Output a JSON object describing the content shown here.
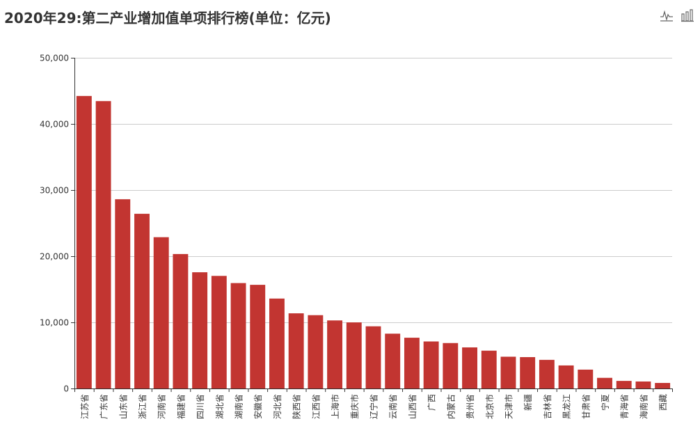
{
  "title": "2020年29:第二产业增加值单项排行榜(单位：亿元)",
  "toolbox": {
    "line_icon": "line-chart-icon",
    "bar_icon": "bar-chart-icon"
  },
  "colors": {
    "bar": "#c23531",
    "axis": "#333333",
    "grid": "#cccccc",
    "text": "#333333"
  },
  "chart_data": {
    "type": "bar",
    "title": "2020年29:第二产业增加值单项排行榜(单位：亿元)",
    "xlabel": "",
    "ylabel": "",
    "ylim": [
      0,
      50000
    ],
    "yticks": [
      "0",
      "10,000",
      "20,000",
      "30,000",
      "40,000",
      "50,000"
    ],
    "grid": true,
    "categories": [
      "江苏省",
      "广东省",
      "山东省",
      "浙江省",
      "河南省",
      "福建省",
      "四川省",
      "湖北省",
      "湖南省",
      "安徽省",
      "河北省",
      "陕西省",
      "江西省",
      "上海市",
      "重庆市",
      "辽宁省",
      "云南省",
      "山西省",
      "广西",
      "内蒙古",
      "贵州省",
      "北京市",
      "天津市",
      "新疆",
      "吉林省",
      "黑龙江",
      "甘肃省",
      "宁夏",
      "青海省",
      "海南省",
      "西藏"
    ],
    "values": [
      44226,
      43451,
      28612,
      26413,
      22875,
      20329,
      17571,
      17023,
      15937,
      15672,
      13597,
      11363,
      11084,
      10289,
      9992,
      9400,
      8288,
      7675,
      7108,
      6868,
      6212,
      5716,
      4804,
      4744,
      4327,
      3483,
      2852,
      1608,
      1143,
      1055,
      837
    ]
  }
}
